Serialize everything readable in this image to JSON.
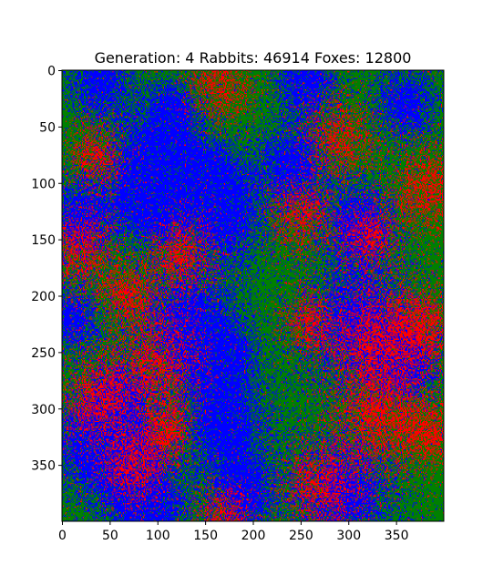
{
  "chart_data": {
    "type": "heatmap",
    "title_parts": {
      "generation_label": "Generation:",
      "generation": 4,
      "rabbits_label": "Rabbits:",
      "rabbits": 46914,
      "foxes_label": "Foxes:",
      "foxes": 12800
    },
    "title": "Generation: 4 Rabbits: 46914 Foxes: 12800",
    "grid_size": [
      400,
      400
    ],
    "xlim": [
      0,
      400
    ],
    "ylim": [
      400,
      0
    ],
    "xticks": [
      0,
      50,
      100,
      150,
      200,
      250,
      300,
      350
    ],
    "yticks": [
      0,
      50,
      100,
      150,
      200,
      250,
      300,
      350
    ],
    "cell_colors": {
      "grass": "#008000",
      "rabbit": "#0000ff",
      "fox": "#ff0000"
    },
    "rabbit_clusters": [
      {
        "x": 40,
        "y": 10,
        "r": 22
      },
      {
        "x": 115,
        "y": 35,
        "r": 18
      },
      {
        "x": 255,
        "y": 10,
        "r": 22
      },
      {
        "x": 360,
        "y": 30,
        "r": 22
      },
      {
        "x": 90,
        "y": 80,
        "r": 28
      },
      {
        "x": 95,
        "y": 120,
        "r": 24
      },
      {
        "x": 150,
        "y": 90,
        "r": 22
      },
      {
        "x": 170,
        "y": 130,
        "r": 28
      },
      {
        "x": 240,
        "y": 85,
        "r": 25
      },
      {
        "x": 20,
        "y": 130,
        "r": 25
      },
      {
        "x": 310,
        "y": 135,
        "r": 25
      },
      {
        "x": 10,
        "y": 220,
        "r": 20
      },
      {
        "x": 130,
        "y": 225,
        "r": 35
      },
      {
        "x": 165,
        "y": 255,
        "r": 22
      },
      {
        "x": 310,
        "y": 225,
        "r": 38
      },
      {
        "x": 360,
        "y": 260,
        "r": 22
      },
      {
        "x": 30,
        "y": 330,
        "r": 30
      },
      {
        "x": 70,
        "y": 345,
        "r": 25
      },
      {
        "x": 90,
        "y": 390,
        "r": 28
      },
      {
        "x": 170,
        "y": 315,
        "r": 30
      },
      {
        "x": 190,
        "y": 375,
        "r": 22
      },
      {
        "x": 295,
        "y": 375,
        "r": 35
      },
      {
        "x": 60,
        "y": 290,
        "r": 20
      }
    ],
    "fox_clusters": [
      {
        "x": 165,
        "y": 10,
        "r": 22
      },
      {
        "x": 35,
        "y": 75,
        "r": 18
      },
      {
        "x": 290,
        "y": 60,
        "r": 22
      },
      {
        "x": 380,
        "y": 105,
        "r": 25
      },
      {
        "x": 250,
        "y": 130,
        "r": 20
      },
      {
        "x": 20,
        "y": 160,
        "r": 22
      },
      {
        "x": 125,
        "y": 165,
        "r": 22
      },
      {
        "x": 320,
        "y": 150,
        "r": 18
      },
      {
        "x": 70,
        "y": 200,
        "r": 18
      },
      {
        "x": 100,
        "y": 260,
        "r": 28
      },
      {
        "x": 35,
        "y": 290,
        "r": 25
      },
      {
        "x": 330,
        "y": 240,
        "r": 30
      },
      {
        "x": 380,
        "y": 225,
        "r": 22
      },
      {
        "x": 260,
        "y": 225,
        "r": 18
      },
      {
        "x": 330,
        "y": 310,
        "r": 30
      },
      {
        "x": 75,
        "y": 350,
        "r": 22
      },
      {
        "x": 270,
        "y": 370,
        "r": 25
      },
      {
        "x": 170,
        "y": 395,
        "r": 18
      },
      {
        "x": 385,
        "y": 320,
        "r": 20
      },
      {
        "x": 110,
        "y": 320,
        "r": 16
      }
    ]
  }
}
